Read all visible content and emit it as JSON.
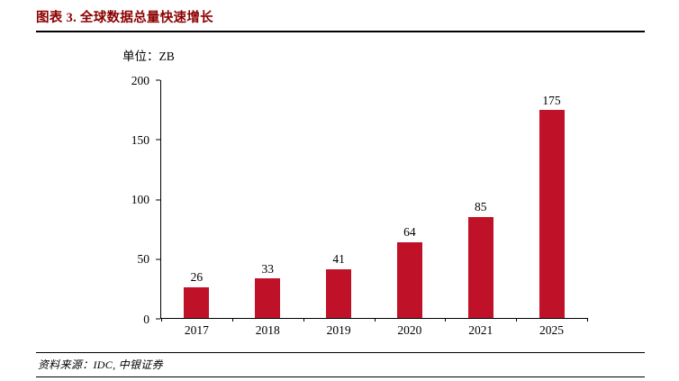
{
  "figure": {
    "title": "图表 3. 全球数据总量快速增长",
    "unit_label": "单位：ZB",
    "source": "资料来源：IDC, 中银证券"
  },
  "colors": {
    "title_text": "#8b0000",
    "bar": "#bf1228",
    "axis": "#000000",
    "rule": "#000000"
  },
  "chart_data": {
    "type": "bar",
    "title": "图表 3. 全球数据总量快速增长",
    "categories": [
      "2017",
      "2018",
      "2019",
      "2020",
      "2021",
      "2025"
    ],
    "values": [
      26,
      33,
      41,
      64,
      85,
      175
    ],
    "xlabel": "",
    "ylabel": "单位：ZB",
    "ylim": [
      0,
      200
    ],
    "yticks": [
      0,
      50,
      100,
      150,
      200
    ],
    "bar_color": "#bf1228",
    "grid": false,
    "legend_position": "none",
    "data_labels": true
  }
}
